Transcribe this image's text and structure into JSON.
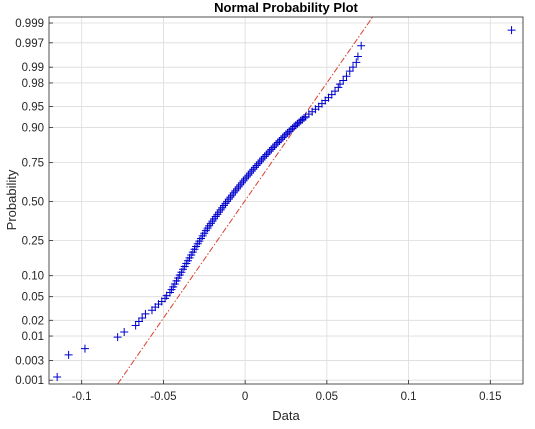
{
  "chart_data": {
    "type": "scatter",
    "title": "Normal Probability Plot",
    "xlabel": "Data",
    "ylabel": "Probability",
    "xlim": [
      -0.12,
      0.17
    ],
    "x_ticks": [
      -0.1,
      -0.05,
      0,
      0.05,
      0.1,
      0.15
    ],
    "x_tick_labels": [
      "-0.1",
      "-0.05",
      "0",
      "0.05",
      "0.1",
      "0.15"
    ],
    "y_scale": "normal-probability",
    "ylim": [
      0.0008,
      0.9993
    ],
    "y_ticks": [
      0.001,
      0.003,
      0.01,
      0.02,
      0.05,
      0.1,
      0.25,
      0.5,
      0.75,
      0.9,
      0.95,
      0.98,
      0.99,
      0.997,
      0.999
    ],
    "y_tick_labels": [
      "0.001",
      "0.003",
      "0.01",
      "0.02",
      "0.05",
      "0.10",
      "0.25",
      "0.50",
      "0.75",
      "0.90",
      "0.95",
      "0.98",
      "0.99",
      "0.997",
      "0.999"
    ],
    "grid": true,
    "marker": "+",
    "marker_color": "#0000cc",
    "reference_line": {
      "style": "dash-dot",
      "color": "#d94030",
      "x": [
        -0.078,
        0.078
      ],
      "y": [
        0.0008,
        0.9993
      ]
    },
    "series": [
      {
        "x": [
          -0.115,
          -0.108,
          -0.098,
          -0.078,
          -0.074,
          -0.067,
          -0.065,
          -0.063,
          -0.061,
          -0.057,
          -0.055,
          -0.053,
          -0.051,
          -0.049,
          -0.048,
          -0.046,
          -0.045,
          -0.044,
          -0.043,
          -0.042,
          -0.041,
          -0.04,
          -0.039,
          -0.038,
          -0.037,
          -0.036,
          -0.035,
          -0.034,
          -0.033,
          -0.032,
          -0.031,
          -0.03,
          -0.029,
          -0.028,
          -0.027,
          -0.026,
          -0.025,
          -0.024,
          -0.023,
          -0.022,
          -0.021,
          -0.02,
          -0.019,
          -0.018,
          -0.017,
          -0.016,
          -0.015,
          -0.014,
          -0.013,
          -0.012,
          -0.011,
          -0.01,
          -0.009,
          -0.008,
          -0.007,
          -0.006,
          -0.005,
          -0.004,
          -0.003,
          -0.002,
          -0.001,
          0.0,
          0.001,
          0.002,
          0.003,
          0.004,
          0.005,
          0.006,
          0.007,
          0.008,
          0.009,
          0.01,
          0.011,
          0.012,
          0.013,
          0.014,
          0.015,
          0.016,
          0.017,
          0.018,
          0.019,
          0.02,
          0.021,
          0.022,
          0.023,
          0.024,
          0.025,
          0.026,
          0.027,
          0.028,
          0.029,
          0.03,
          0.031,
          0.032,
          0.033,
          0.034,
          0.035,
          0.036,
          0.037,
          0.039,
          0.041,
          0.043,
          0.045,
          0.047,
          0.049,
          0.051,
          0.053,
          0.055,
          0.057,
          0.058,
          0.06,
          0.062,
          0.064,
          0.066,
          0.068,
          0.069,
          0.071,
          0.163
        ],
        "y": [
          0.0012,
          0.004,
          0.0055,
          0.0095,
          0.012,
          0.016,
          0.019,
          0.022,
          0.026,
          0.03,
          0.034,
          0.038,
          0.042,
          0.047,
          0.052,
          0.058,
          0.064,
          0.07,
          0.077,
          0.085,
          0.093,
          0.102,
          0.111,
          0.121,
          0.131,
          0.142,
          0.153,
          0.165,
          0.178,
          0.191,
          0.205,
          0.219,
          0.233,
          0.247,
          0.262,
          0.277,
          0.292,
          0.308,
          0.323,
          0.338,
          0.353,
          0.368,
          0.383,
          0.398,
          0.413,
          0.428,
          0.443,
          0.458,
          0.473,
          0.488,
          0.502,
          0.517,
          0.531,
          0.545,
          0.56,
          0.574,
          0.587,
          0.601,
          0.614,
          0.627,
          0.64,
          0.653,
          0.665,
          0.677,
          0.689,
          0.701,
          0.712,
          0.723,
          0.734,
          0.744,
          0.754,
          0.764,
          0.774,
          0.783,
          0.792,
          0.8,
          0.809,
          0.817,
          0.825,
          0.832,
          0.84,
          0.847,
          0.853,
          0.86,
          0.866,
          0.872,
          0.878,
          0.883,
          0.888,
          0.893,
          0.898,
          0.903,
          0.907,
          0.911,
          0.915,
          0.919,
          0.922,
          0.926,
          0.929,
          0.935,
          0.94,
          0.945,
          0.95,
          0.955,
          0.96,
          0.964,
          0.968,
          0.972,
          0.976,
          0.979,
          0.982,
          0.985,
          0.988,
          0.99,
          0.992,
          0.994,
          0.9965,
          0.9985
        ]
      }
    ]
  }
}
